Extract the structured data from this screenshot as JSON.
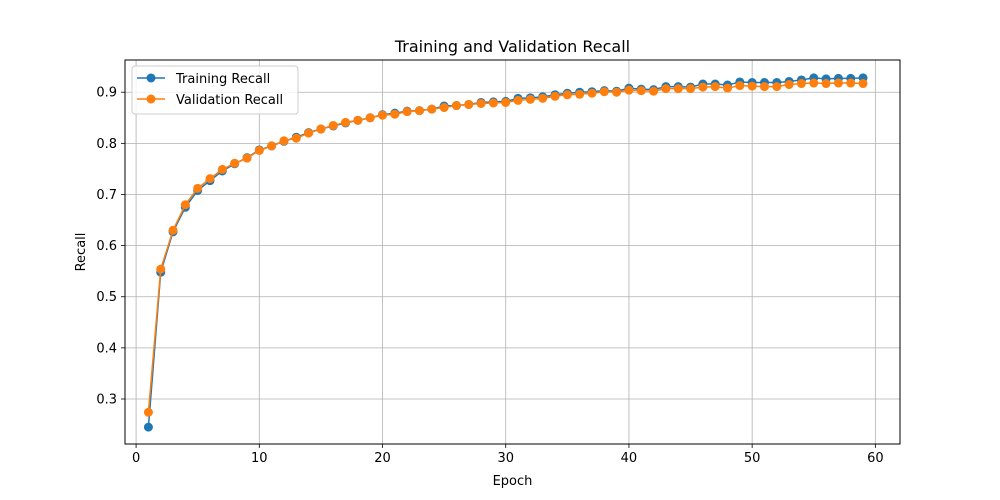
{
  "chart_data": {
    "type": "line",
    "title": "Training and Validation Recall",
    "xlabel": "Epoch",
    "ylabel": "Recall",
    "xlim": [
      -0.9,
      62.0
    ],
    "ylim": [
      0.212,
      0.963
    ],
    "xticks": [
      0,
      10,
      20,
      30,
      40,
      50,
      60
    ],
    "yticks": [
      0.3,
      0.4,
      0.5,
      0.6,
      0.7,
      0.8,
      0.9
    ],
    "grid": true,
    "legend_position": "upper left",
    "x": [
      1,
      2,
      3,
      4,
      5,
      6,
      7,
      8,
      9,
      10,
      11,
      12,
      13,
      14,
      15,
      16,
      17,
      18,
      19,
      20,
      21,
      22,
      23,
      24,
      25,
      26,
      27,
      28,
      29,
      30,
      31,
      32,
      33,
      34,
      35,
      36,
      37,
      38,
      39,
      40,
      41,
      42,
      43,
      44,
      45,
      46,
      47,
      48,
      49,
      50,
      51,
      52,
      53,
      54,
      55,
      56,
      57,
      58,
      59
    ],
    "series": [
      {
        "name": "Training Recall",
        "color": "#1f77b4",
        "values": [
          0.245,
          0.548,
          0.627,
          0.675,
          0.708,
          0.727,
          0.746,
          0.76,
          0.772,
          0.787,
          0.795,
          0.804,
          0.812,
          0.821,
          0.828,
          0.834,
          0.84,
          0.845,
          0.85,
          0.856,
          0.859,
          0.863,
          0.864,
          0.867,
          0.873,
          0.874,
          0.876,
          0.88,
          0.881,
          0.882,
          0.888,
          0.889,
          0.891,
          0.895,
          0.898,
          0.9,
          0.901,
          0.903,
          0.902,
          0.908,
          0.906,
          0.905,
          0.911,
          0.911,
          0.91,
          0.916,
          0.916,
          0.914,
          0.92,
          0.919,
          0.919,
          0.919,
          0.921,
          0.924,
          0.928,
          0.926,
          0.927,
          0.927,
          0.928
        ]
      },
      {
        "name": "Validation Recall",
        "color": "#ff7f0e",
        "values": [
          0.274,
          0.554,
          0.63,
          0.68,
          0.712,
          0.731,
          0.749,
          0.761,
          0.771,
          0.786,
          0.795,
          0.805,
          0.81,
          0.82,
          0.828,
          0.835,
          0.841,
          0.845,
          0.85,
          0.855,
          0.857,
          0.862,
          0.864,
          0.867,
          0.87,
          0.874,
          0.876,
          0.878,
          0.879,
          0.88,
          0.884,
          0.886,
          0.888,
          0.892,
          0.895,
          0.896,
          0.898,
          0.901,
          0.9,
          0.904,
          0.903,
          0.902,
          0.907,
          0.907,
          0.907,
          0.91,
          0.911,
          0.908,
          0.913,
          0.912,
          0.911,
          0.911,
          0.915,
          0.917,
          0.918,
          0.917,
          0.918,
          0.918,
          0.917
        ]
      }
    ]
  }
}
